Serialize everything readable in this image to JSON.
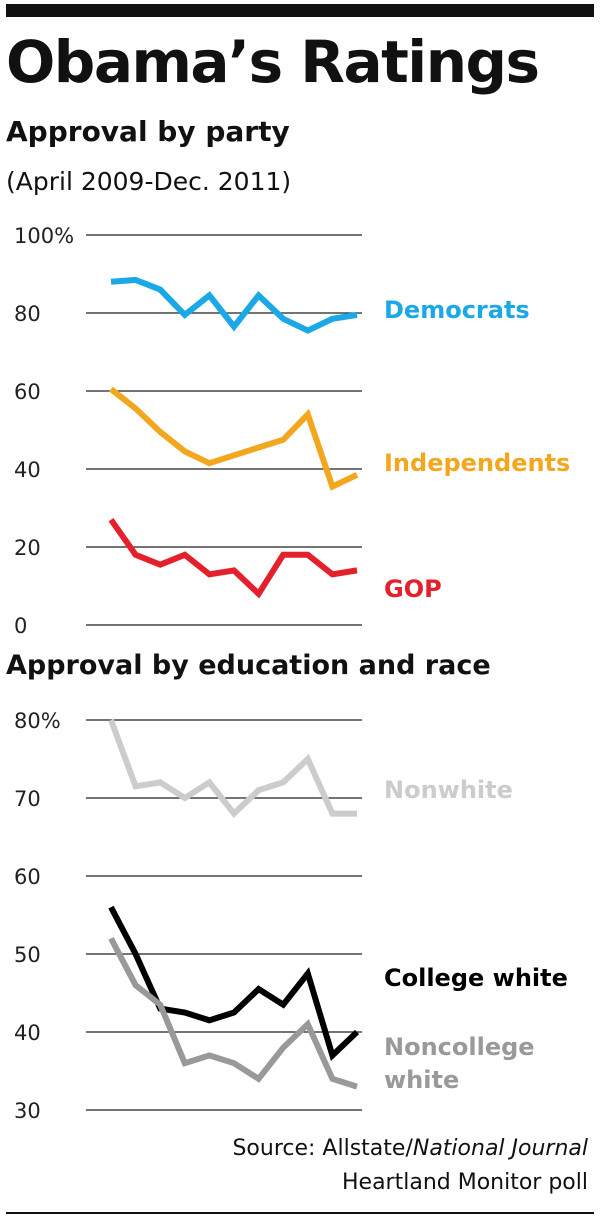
{
  "title": "Obama’s Ratings",
  "chart_data": [
    {
      "type": "line",
      "title": "Approval by party",
      "subtitle": "(April 2009-Dec. 2011)",
      "ylim": [
        0,
        100
      ],
      "yticks": [
        "100%",
        "80",
        "60",
        "40",
        "20",
        "0"
      ],
      "ytick_values": [
        100,
        80,
        60,
        40,
        20,
        0
      ],
      "grid": true,
      "legend": "labels at right end of lines",
      "series": [
        {
          "name": "Democrats",
          "color": "#1aa8e6",
          "values": [
            88,
            88.5,
            86,
            79.5,
            84.5,
            76.5,
            84.5,
            78.5,
            75.5,
            78.5,
            79.5
          ]
        },
        {
          "name": "Independents",
          "color": "#f2a71f",
          "values": [
            60.5,
            55.5,
            49.5,
            44.5,
            41.5,
            43.5,
            45.5,
            47.5,
            54,
            35.5,
            38.5
          ]
        },
        {
          "name": "GOP",
          "color": "#e3202b",
          "values": [
            27,
            18,
            15.5,
            18,
            13,
            14,
            8,
            18,
            18,
            13,
            14
          ]
        }
      ]
    },
    {
      "type": "line",
      "title": "Approval by education and race",
      "ylim": [
        30,
        80
      ],
      "yticks": [
        "80%",
        "70",
        "60",
        "50",
        "40",
        "30"
      ],
      "ytick_values": [
        80,
        70,
        60,
        50,
        40,
        30
      ],
      "grid": true,
      "legend": "labels at right end of lines",
      "series": [
        {
          "name": "Nonwhite",
          "color": "#cccccc",
          "values": [
            80,
            71.5,
            72,
            70,
            72,
            68,
            71,
            72,
            75,
            68,
            68
          ]
        },
        {
          "name": "College white",
          "color": "#000000",
          "values": [
            56,
            50,
            43,
            42.5,
            41.5,
            42.5,
            45.5,
            43.5,
            47.5,
            37,
            40
          ]
        },
        {
          "name": "Noncollege white",
          "color": "#999999",
          "values": [
            52,
            46,
            43.5,
            36,
            37,
            36,
            34,
            38,
            41,
            34,
            33
          ]
        }
      ]
    }
  ],
  "source": {
    "prefix": "Source: Allstate/",
    "publication": "National Journal",
    "line2": "Heartland Monitor poll"
  }
}
